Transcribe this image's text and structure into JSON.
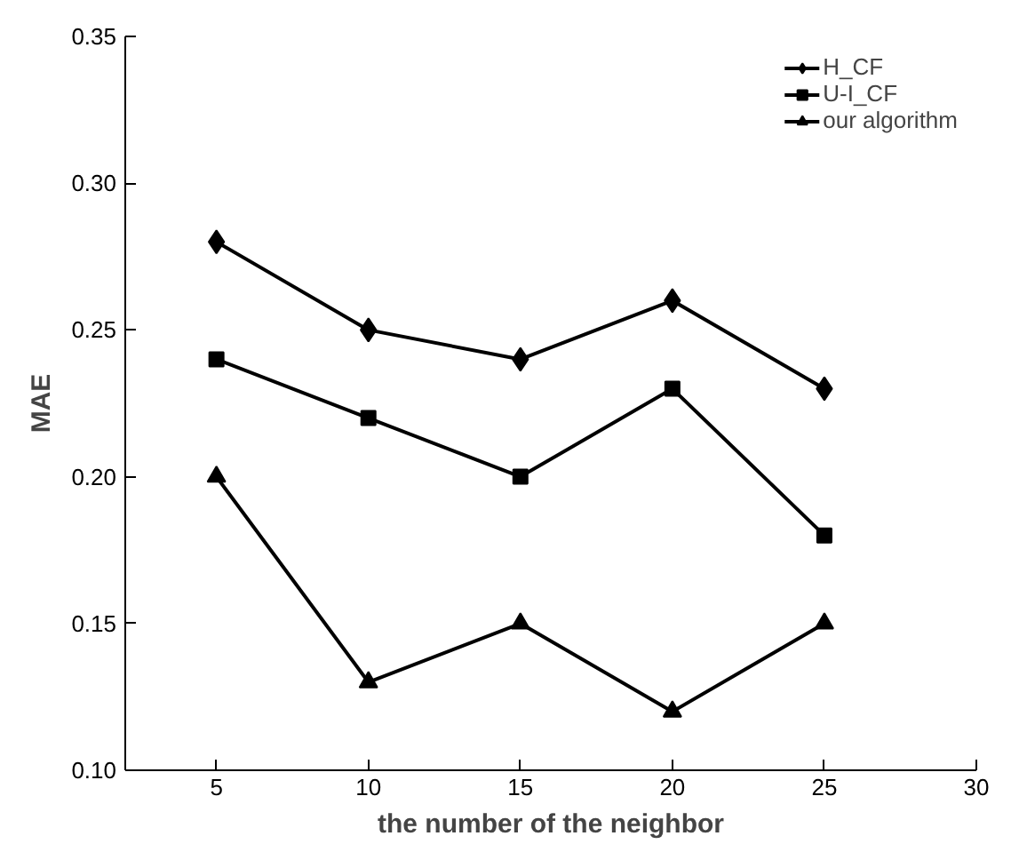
{
  "chart_data": {
    "type": "line",
    "xlabel": "the number of the neighbor",
    "ylabel": "MAE",
    "x": [
      5,
      10,
      15,
      20,
      25
    ],
    "series": [
      {
        "name": "H_CF",
        "color": "#000000",
        "marker": "diamond",
        "values": [
          0.28,
          0.25,
          0.24,
          0.26,
          0.23
        ]
      },
      {
        "name": "U-I_CF",
        "color": "#000000",
        "marker": "square",
        "values": [
          0.24,
          0.22,
          0.2,
          0.23,
          0.18
        ]
      },
      {
        "name": "our algorithm",
        "color": "#000000",
        "marker": "triangle",
        "values": [
          0.2,
          0.13,
          0.15,
          0.12,
          0.15
        ]
      }
    ],
    "xlim": [
      2,
      30
    ],
    "xticks": [
      5,
      10,
      15,
      20,
      25,
      30
    ],
    "ylim": [
      0.1,
      0.35
    ],
    "yticks": [
      {
        "value": 0.1,
        "label": "0.10"
      },
      {
        "value": 0.15,
        "label": "0.15"
      },
      {
        "value": 0.2,
        "label": "0.20"
      },
      {
        "value": 0.25,
        "label": "0.25"
      },
      {
        "value": 0.3,
        "label": "0.30"
      },
      {
        "value": 0.35,
        "label": "0.35"
      }
    ],
    "grid": false,
    "legend": "top right",
    "line_style": "solid"
  }
}
